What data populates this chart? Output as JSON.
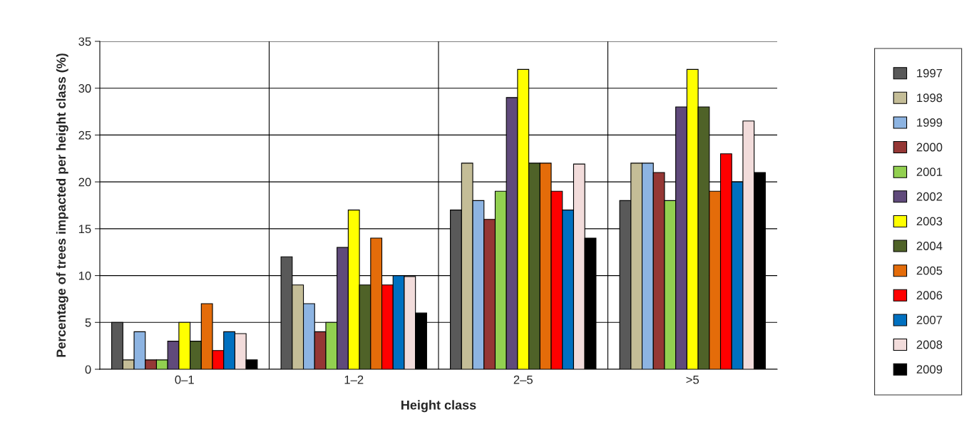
{
  "chart_data": {
    "type": "bar",
    "xlabel": "Height class",
    "ylabel": "Percentage of trees impacted per height class (%)",
    "categories": [
      "0–1",
      "1–2",
      "2–5",
      ">5"
    ],
    "ylim": [
      0,
      35
    ],
    "yticks": [
      0,
      5,
      10,
      15,
      20,
      25,
      30,
      35
    ],
    "grid": true,
    "legend": "right",
    "series": [
      {
        "name": "1997",
        "color": "#595959",
        "values": [
          5,
          12,
          17,
          18
        ]
      },
      {
        "name": "1998",
        "color": "#c4bd97",
        "values": [
          1,
          9,
          22,
          22
        ]
      },
      {
        "name": "1999",
        "color": "#8db4e2",
        "values": [
          4,
          7,
          18,
          22
        ]
      },
      {
        "name": "2000",
        "color": "#953735",
        "values": [
          1,
          4,
          16,
          21
        ]
      },
      {
        "name": "2001",
        "color": "#92d050",
        "values": [
          1,
          5,
          19,
          18
        ]
      },
      {
        "name": "2002",
        "color": "#604a7b",
        "values": [
          3,
          13,
          29,
          28
        ]
      },
      {
        "name": "2003",
        "color": "#ffff00",
        "values": [
          5,
          17,
          32,
          32
        ]
      },
      {
        "name": "2004",
        "color": "#4f6228",
        "values": [
          3,
          9,
          22,
          28
        ]
      },
      {
        "name": "2005",
        "color": "#e46c0a",
        "values": [
          7,
          14,
          22,
          19
        ]
      },
      {
        "name": "2006",
        "color": "#ff0000",
        "values": [
          2,
          9,
          19,
          23
        ]
      },
      {
        "name": "2007",
        "color": "#0070c0",
        "values": [
          4,
          10,
          17,
          20
        ]
      },
      {
        "name": "2008",
        "color": "#f2dcdb",
        "values": [
          3.8,
          9.9,
          21.9,
          26.5
        ]
      },
      {
        "name": "2009",
        "color": "#000000",
        "values": [
          1,
          6,
          14,
          21
        ]
      }
    ]
  }
}
